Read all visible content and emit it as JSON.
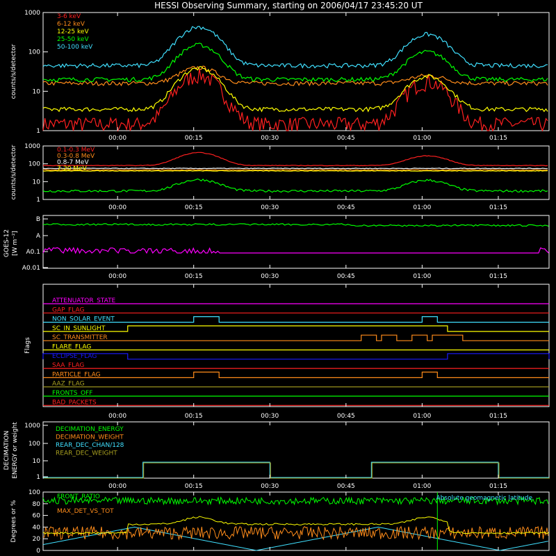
{
  "title": "HESSI Observing Summary, starting on 2006/04/17 23:45:20 UT",
  "time_ticks": [
    "00:00",
    "00:15",
    "00:30",
    "00:45",
    "01:00",
    "01:15"
  ],
  "colors": {
    "red": "#ff2020",
    "orange": "#ff8c1a",
    "yellow": "#ffff00",
    "green": "#00ff00",
    "cyan": "#40e0ff",
    "magenta": "#ff00ff",
    "blue": "#1a1aff",
    "olive": "#a8a020",
    "white": "#ffffff"
  },
  "chart_data": [
    {
      "type": "line",
      "panel": "low-energy-rates",
      "xlabel": "",
      "ylabel": "counts/s/detector",
      "yscale": "log",
      "ylim": [
        1,
        1000
      ],
      "ytick_labels": [
        "1",
        "10",
        "100",
        "1000"
      ],
      "time_range": [
        "23:45:20",
        "01:25"
      ],
      "legend_placement": "top-left",
      "series": [
        {
          "name": "3-6 keV",
          "color": "red",
          "baseline": 1.5,
          "peaks": [
            {
              "time": "00:16",
              "value": 26
            },
            {
              "time": "01:01",
              "value": 18
            }
          ]
        },
        {
          "name": "6-12 keV",
          "color": "orange",
          "baseline": 16,
          "peaks": [
            {
              "time": "00:16",
              "value": 40
            },
            {
              "time": "01:01",
              "value": 25
            }
          ]
        },
        {
          "name": "12-25 keV",
          "color": "yellow",
          "baseline": 3.5,
          "peaks": [
            {
              "time": "00:16",
              "value": 38
            },
            {
              "time": "01:01",
              "value": 24
            }
          ]
        },
        {
          "name": "25-50 keV",
          "color": "green",
          "baseline": 20,
          "peaks": [
            {
              "time": "00:16",
              "value": 150
            },
            {
              "time": "01:01",
              "value": 100
            }
          ]
        },
        {
          "name": "50-100 keV",
          "color": "cyan",
          "baseline": 45,
          "peaks": [
            {
              "time": "00:16",
              "value": 430
            },
            {
              "time": "01:01",
              "value": 280
            }
          ]
        }
      ]
    },
    {
      "type": "line",
      "panel": "high-energy-rates",
      "ylabel": "counts/s/detector",
      "yscale": "log",
      "ylim": [
        1,
        1000
      ],
      "ytick_labels": [
        "1",
        "10",
        "100",
        "1000"
      ],
      "legend_placement": "top-left",
      "series": [
        {
          "name": "0.1-0.3 MeV",
          "color": "red",
          "baseline": 80,
          "peaks": [
            {
              "time": "00:16",
              "value": 420
            },
            {
              "time": "01:01",
              "value": 280
            }
          ]
        },
        {
          "name": "0.3-0.8 MeV",
          "color": "orange",
          "baseline": 45,
          "peaks": []
        },
        {
          "name": "0.8-7 MeV",
          "color": "white",
          "baseline": 55,
          "peaks": []
        },
        {
          "name": "7-20 MeV",
          "color": "yellow",
          "baseline": 40,
          "peaks": []
        },
        {
          "name": "",
          "color": "green",
          "baseline": 3,
          "peaks": [
            {
              "time": "00:16",
              "value": 13
            },
            {
              "time": "01:01",
              "value": 12
            }
          ]
        }
      ]
    },
    {
      "type": "line",
      "panel": "goes",
      "ylabel": "GOES-12",
      "ylabel2": "[W m⁻²]",
      "ytick_labels": [
        "B",
        "A",
        "A0.1",
        "A0.01"
      ],
      "series": [
        {
          "name": "",
          "color": "green",
          "level": "B-A"
        },
        {
          "name": "",
          "color": "magenta",
          "level": "A0.1"
        }
      ]
    },
    {
      "type": "step",
      "panel": "flags",
      "ylabel": "Flags",
      "flags": [
        {
          "name": "ATTENUATOR_STATE",
          "color": "magenta"
        },
        {
          "name": "GAP_FLAG",
          "color": "red"
        },
        {
          "name": "NON_SOLAR_EVENT",
          "color": "cyan",
          "on": [
            [
              "00:15",
              "00:20"
            ],
            [
              "01:00",
              "01:03"
            ]
          ]
        },
        {
          "name": "SC_IN_SUNLIGHT",
          "color": "yellow",
          "on": [
            [
              "00:02",
              "01:05"
            ]
          ]
        },
        {
          "name": "SC_TRANSMITTER",
          "color": "orange",
          "on": [
            [
              "00:48",
              "00:51"
            ],
            [
              "00:52",
              "00:55"
            ],
            [
              "00:58",
              "01:01"
            ],
            [
              "01:02",
              "01:08"
            ]
          ]
        },
        {
          "name": "FLARE_FLAG",
          "color": "yellow"
        },
        {
          "name": "ECLIPSE_FLAG",
          "color": "blue",
          "on": [
            [
              "23:45",
              "00:02"
            ],
            [
              "01:05",
              "01:25"
            ]
          ]
        },
        {
          "name": "SAA_FLAG",
          "color": "red"
        },
        {
          "name": "PARTICLE_FLAG",
          "color": "orange",
          "on": [
            [
              "00:15",
              "00:20"
            ],
            [
              "01:00",
              "01:03"
            ]
          ]
        },
        {
          "name": "AAZ_FLAG",
          "color": "olive"
        },
        {
          "name": "FRONTS_OFF",
          "color": "green"
        },
        {
          "name": "BAD_PACKETS",
          "color": "red"
        }
      ]
    },
    {
      "type": "step",
      "panel": "decimation",
      "ylabel": "DECIMATION",
      "ylabel2": "ENERGY or weight",
      "yscale": "log",
      "ytick_labels": [
        "1",
        "10",
        "100",
        "1000"
      ],
      "series": [
        {
          "name": "DECIMATION_ENERGY",
          "color": "green"
        },
        {
          "name": "DECIMATION_WEIGHT",
          "color": "orange"
        },
        {
          "name": "REAR_DEC_CHAN/128",
          "color": "cyan",
          "on": [
            [
              "00:05",
              "00:30"
            ],
            [
              "00:50",
              "01:15"
            ]
          ],
          "value": 8
        },
        {
          "name": "REAR_DEC_WEIGHT",
          "color": "olive",
          "on": [
            [
              "00:05",
              "00:30"
            ],
            [
              "00:50",
              "01:15"
            ]
          ],
          "value": 8
        }
      ]
    },
    {
      "type": "line",
      "panel": "ratios",
      "ylabel": "Degrees or %",
      "ylim": [
        0,
        100
      ],
      "ytick_labels": [
        "0",
        "20",
        "40",
        "60",
        "80",
        "100"
      ],
      "series": [
        {
          "name": "FRONT_RATIO",
          "color": "green",
          "baseline": 85
        },
        {
          "name": "MAX_DET_VS_TOT",
          "color": "orange",
          "baseline": 30
        },
        {
          "name": "Absolute geomagnetic latitude",
          "color": "cyan",
          "range": [
            0,
            40
          ]
        },
        {
          "name": "",
          "color": "yellow",
          "baseline": 45
        }
      ]
    }
  ]
}
